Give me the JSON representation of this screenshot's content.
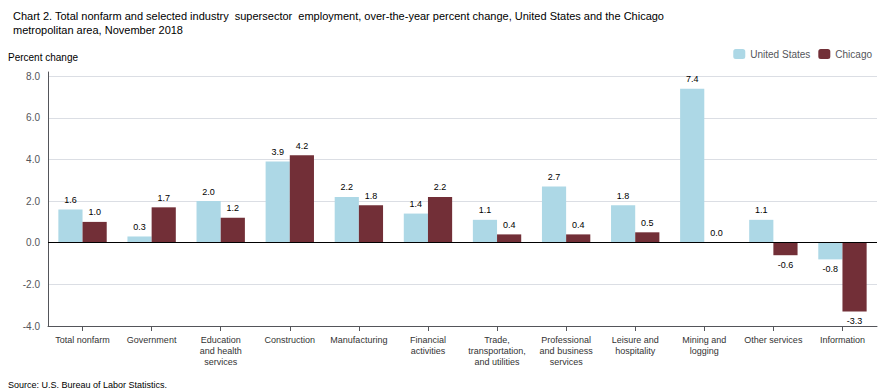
{
  "chart_data": {
    "type": "bar",
    "title": "Chart 2. Total nonfarm and selected industry  supersector  employment, over-the-year percent change, United States and the Chicago\nmetropolitan area, November 2018",
    "ylabel": "Percent change",
    "source": "Source: U.S. Bureau of Labor Statistics.",
    "categories": [
      "Total nonfarm",
      "Government",
      "Education\nand health\nservices",
      "Construction",
      "Manufacturing",
      "Financial\nactivities",
      "Trade,\ntransportation,\nand utilities",
      "Professional\nand business\nservices",
      "Leisure and\nhospitality",
      "Mining and\nlogging",
      "Other services",
      "Information"
    ],
    "series": [
      {
        "name": "United States",
        "color": "#ADD8E6",
        "values": [
          1.6,
          0.3,
          2.0,
          3.9,
          2.2,
          1.4,
          1.1,
          2.7,
          1.8,
          7.4,
          1.1,
          -0.8
        ],
        "value_labels": [
          "1.6",
          "0.3",
          "2.0",
          "3.9",
          "2.2",
          "1.4",
          "1.1",
          "2.7",
          "1.8",
          "7.4",
          "1.1",
          "-0.8"
        ]
      },
      {
        "name": "Chicago",
        "color": "#722F37",
        "values": [
          1.0,
          1.7,
          1.2,
          4.2,
          1.8,
          2.2,
          0.4,
          0.4,
          0.5,
          0.0,
          -0.6,
          -3.3
        ],
        "value_labels": [
          "1.0",
          "1.7",
          "1.2",
          "4.2",
          "1.8",
          "2.2",
          "0.4",
          "0.4",
          "0.5",
          "0.0",
          "-0.6",
          "-3.3"
        ]
      }
    ],
    "ylim": [
      -4.0,
      8.2
    ],
    "yticks": [
      {
        "value": -4.0,
        "label": "-4.0"
      },
      {
        "value": -2.0,
        "label": "-2.0"
      },
      {
        "value": 0.0,
        "label": "0.0"
      },
      {
        "value": 2.0,
        "label": "2.0"
      },
      {
        "value": 4.0,
        "label": "4.0"
      },
      {
        "value": 6.0,
        "label": "6.0"
      },
      {
        "value": 8.0,
        "label": "8.0"
      }
    ],
    "grid": true,
    "legend": "upper right",
    "data_labels": true
  }
}
